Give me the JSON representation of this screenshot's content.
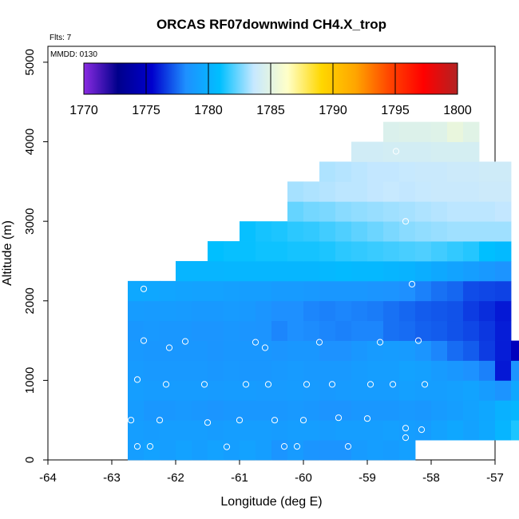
{
  "header": {
    "flights_label": "Flts: 7",
    "date_label": "MMDD: 0130"
  },
  "chart_data": {
    "type": "heatmap",
    "title": "ORCAS RF07downwind CH4.X_trop",
    "xlabel": "Longitude (deg E)",
    "ylabel": "Altitude (m)",
    "xlim": [
      -64,
      -57
    ],
    "ylim": [
      0,
      5200
    ],
    "x_ticks": [
      -64,
      -63,
      -62,
      -61,
      -60,
      -59,
      -58,
      -57
    ],
    "y_ticks": [
      0,
      1000,
      2000,
      3000,
      4000,
      5000
    ],
    "cell_width_deg": 0.25,
    "cell_height_m": 250,
    "colorbar": {
      "min": 1770,
      "max": 1800,
      "ticks": [
        1770,
        1775,
        1780,
        1785,
        1790,
        1795,
        1800
      ],
      "colors": [
        "#8a2be2",
        "#00008b",
        "#0000cd",
        "#1e90ff",
        "#00bfff",
        "#c6e8ff",
        "#ffffc8",
        "#ffd700",
        "#ffa500",
        "#ff4500",
        "#ff0000",
        "#b22222"
      ]
    },
    "rows": [
      {
        "alt_min": 0,
        "alt_max": 250,
        "lon_start": -62.75,
        "values": [
          1779.0,
          1779.2,
          1779.0,
          1779.2,
          1779.0,
          1779.2,
          1779.0,
          1779.2,
          1779.0,
          1778.5,
          1778.8,
          1778.5,
          1778.4,
          1778.4,
          1778.8,
          1779.0,
          1778.9,
          1779.1
        ]
      },
      {
        "alt_min": 250,
        "alt_max": 500,
        "lon_start": -62.75,
        "values": [
          1779.0,
          1778.9,
          1779.0,
          1779.0,
          1779.0,
          1778.9,
          1779.0,
          1779.0,
          1779.0,
          1778.9,
          1779.0,
          1779.0,
          1778.9,
          1779.0,
          1779.0,
          1779.0,
          1779.1,
          1779.0,
          1778.9,
          1779.2,
          1779.5,
          1779.2,
          1779.6,
          1780.3,
          1781.3
        ]
      },
      {
        "alt_min": 500,
        "alt_max": 750,
        "lon_start": -62.75,
        "values": [
          1778.9,
          1778.6,
          1778.6,
          1778.7,
          1778.6,
          1778.5,
          1778.6,
          1778.6,
          1778.6,
          1778.6,
          1778.7,
          1778.6,
          1778.4,
          1778.4,
          1778.6,
          1778.6,
          1778.6,
          1778.7,
          1778.6,
          1778.8,
          1779.0,
          1779.2,
          1779.5,
          1780.1,
          1780.4
        ]
      },
      {
        "alt_min": 750,
        "alt_max": 1000,
        "lon_start": -62.75,
        "values": [
          1779.0,
          1778.9,
          1778.9,
          1778.9,
          1778.9,
          1778.8,
          1778.9,
          1778.9,
          1778.8,
          1778.8,
          1778.9,
          1778.8,
          1778.7,
          1778.8,
          1778.9,
          1778.9,
          1778.9,
          1779.1,
          1779.0,
          1779.0,
          1779.1,
          1779.3,
          1778.9,
          1778.4,
          1779.5
        ]
      },
      {
        "alt_min": 1000,
        "alt_max": 1250,
        "lon_start": -62.75,
        "values": [
          1778.8,
          1778.7,
          1778.7,
          1778.7,
          1778.7,
          1778.6,
          1778.7,
          1778.6,
          1778.6,
          1778.7,
          1778.8,
          1778.7,
          1778.7,
          1778.7,
          1778.9,
          1779.0,
          1779.0,
          1779.2,
          1779.1,
          1778.8,
          1778.6,
          1778.3,
          1777.9,
          1775.9,
          1778.4
        ]
      },
      {
        "alt_min": 1250,
        "alt_max": 1500,
        "lon_start": -62.75,
        "values": [
          1778.7,
          1778.6,
          1778.6,
          1778.6,
          1778.6,
          1778.5,
          1778.6,
          1778.6,
          1778.6,
          1778.5,
          1778.6,
          1778.6,
          1778.3,
          1778.3,
          1778.6,
          1778.8,
          1778.9,
          1778.8,
          1778.5,
          1778.0,
          1777.5,
          1777.2,
          1776.6,
          1776.0,
          1774.8
        ]
      },
      {
        "alt_min": 1500,
        "alt_max": 1750,
        "lon_start": -62.75,
        "values": [
          1778.6,
          1778.7,
          1778.6,
          1778.6,
          1778.5,
          1778.5,
          1778.6,
          1778.5,
          1778.4,
          1778.0,
          1778.2,
          1778.1,
          1778.0,
          1777.9,
          1778.0,
          1778.0,
          1777.6,
          1777.5,
          1777.3,
          1777.2,
          1777.0,
          1776.8,
          1776.5,
          1776.0
        ]
      },
      {
        "alt_min": 1750,
        "alt_max": 2000,
        "lon_start": -62.75,
        "values": [
          1778.9,
          1778.8,
          1778.9,
          1778.8,
          1778.7,
          1778.7,
          1778.8,
          1778.7,
          1778.5,
          1778.2,
          1778.2,
          1778.0,
          1777.9,
          1778.0,
          1777.9,
          1777.8,
          1777.6,
          1777.4,
          1777.2,
          1777.1,
          1777.0,
          1776.6,
          1776.3,
          1775.9
        ]
      },
      {
        "alt_min": 2000,
        "alt_max": 2250,
        "lon_start": -62.75,
        "values": [
          1779.6,
          1779.5,
          1779.4,
          1779.3,
          1779.2,
          1779.2,
          1779.1,
          1779.0,
          1779.0,
          1778.8,
          1778.8,
          1778.7,
          1778.6,
          1778.6,
          1778.6,
          1778.5,
          1778.4,
          1778.2,
          1777.9,
          1777.6,
          1777.4,
          1776.9,
          1776.8,
          1776.7
        ]
      },
      {
        "alt_min": 2250,
        "alt_max": 2500,
        "lon_start": -62.0,
        "values": [
          1780.3,
          1780.3,
          1780.3,
          1780.4,
          1780.4,
          1780.4,
          1780.4,
          1780.4,
          1780.4,
          1780.5,
          1780.6,
          1780.5,
          1780.5,
          1780.3,
          1780.2,
          1779.9,
          1779.6,
          1779.3,
          1779.0,
          1778.7,
          1778.4
        ]
      },
      {
        "alt_min": 2500,
        "alt_max": 2750,
        "lon_start": -61.5,
        "values": [
          1780.9,
          1781.0,
          1781.0,
          1781.1,
          1781.1,
          1781.2,
          1781.2,
          1781.3,
          1781.5,
          1781.6,
          1781.7,
          1781.8,
          1781.9,
          1782.0,
          1781.8,
          1781.6,
          1781.4,
          1780.9,
          1780.6
        ]
      },
      {
        "alt_min": 2750,
        "alt_max": 3000,
        "lon_start": -61.0,
        "values": [
          1781.0,
          1781.2,
          1781.3,
          1781.5,
          1781.6,
          1781.8,
          1782.0,
          1782.2,
          1782.4,
          1782.6,
          1782.8,
          1782.9,
          1783.0,
          1783.1,
          1783.1,
          1783.1,
          1783.1
        ]
      },
      {
        "alt_min": 3000,
        "alt_max": 3250,
        "lon_start": -60.25,
        "values": [
          1782.3,
          1782.5,
          1782.6,
          1782.8,
          1782.9,
          1783.0,
          1783.1,
          1783.2,
          1783.3,
          1783.4,
          1783.5,
          1783.5,
          1783.5,
          1783.6
        ]
      },
      {
        "alt_min": 3250,
        "alt_max": 3500,
        "lon_start": -60.25,
        "values": [
          1783.2,
          1783.3,
          1783.4,
          1783.5,
          1783.5,
          1783.6,
          1783.7,
          1783.6,
          1783.7,
          1783.8,
          1783.8,
          1783.8,
          1783.9,
          1783.9
        ]
      },
      {
        "alt_min": 3500,
        "alt_max": 3750,
        "lon_start": -59.75,
        "values": [
          1783.3,
          1783.4,
          1783.5,
          1783.6,
          1783.6,
          1783.7,
          1783.8,
          1783.8,
          1783.9,
          1783.9,
          1784.0,
          1784.0
        ]
      },
      {
        "alt_min": 3750,
        "alt_max": 4000,
        "lon_start": -59.25,
        "values": [
          1784.1,
          1784.1,
          1784.2,
          1784.2,
          1784.2,
          1784.3,
          1784.3,
          1784.3
        ]
      },
      {
        "alt_min": 4000,
        "alt_max": 4250,
        "lon_start": -58.75,
        "values": [
          1784.6,
          1784.7,
          1784.7,
          1784.8,
          1785.3,
          1784.9
        ]
      }
    ],
    "sample_points": [
      {
        "lon": -62.6,
        "alt": 170
      },
      {
        "lon": -62.4,
        "alt": 170
      },
      {
        "lon": -61.2,
        "alt": 165
      },
      {
        "lon": -60.3,
        "alt": 170
      },
      {
        "lon": -60.1,
        "alt": 170
      },
      {
        "lon": -59.3,
        "alt": 170
      },
      {
        "lon": -62.7,
        "alt": 500
      },
      {
        "lon": -62.25,
        "alt": 500
      },
      {
        "lon": -61.5,
        "alt": 470
      },
      {
        "lon": -61.0,
        "alt": 500
      },
      {
        "lon": -60.45,
        "alt": 500
      },
      {
        "lon": -60.0,
        "alt": 500
      },
      {
        "lon": -59.45,
        "alt": 530
      },
      {
        "lon": -59.0,
        "alt": 520
      },
      {
        "lon": -58.4,
        "alt": 400
      },
      {
        "lon": -58.4,
        "alt": 280
      },
      {
        "lon": -58.15,
        "alt": 380
      },
      {
        "lon": -62.6,
        "alt": 1010
      },
      {
        "lon": -62.15,
        "alt": 950
      },
      {
        "lon": -61.55,
        "alt": 950
      },
      {
        "lon": -60.9,
        "alt": 950
      },
      {
        "lon": -60.55,
        "alt": 950
      },
      {
        "lon": -59.95,
        "alt": 950
      },
      {
        "lon": -59.55,
        "alt": 950
      },
      {
        "lon": -58.95,
        "alt": 950
      },
      {
        "lon": -58.6,
        "alt": 950
      },
      {
        "lon": -58.1,
        "alt": 950
      },
      {
        "lon": -62.5,
        "alt": 1500
      },
      {
        "lon": -62.1,
        "alt": 1410
      },
      {
        "lon": -61.85,
        "alt": 1490
      },
      {
        "lon": -60.75,
        "alt": 1480
      },
      {
        "lon": -60.6,
        "alt": 1410
      },
      {
        "lon": -59.75,
        "alt": 1480
      },
      {
        "lon": -58.8,
        "alt": 1480
      },
      {
        "lon": -58.2,
        "alt": 1500
      },
      {
        "lon": -62.5,
        "alt": 2150
      },
      {
        "lon": -58.3,
        "alt": 2210
      },
      {
        "lon": -58.4,
        "alt": 3000
      },
      {
        "lon": -58.55,
        "alt": 3880
      }
    ]
  }
}
